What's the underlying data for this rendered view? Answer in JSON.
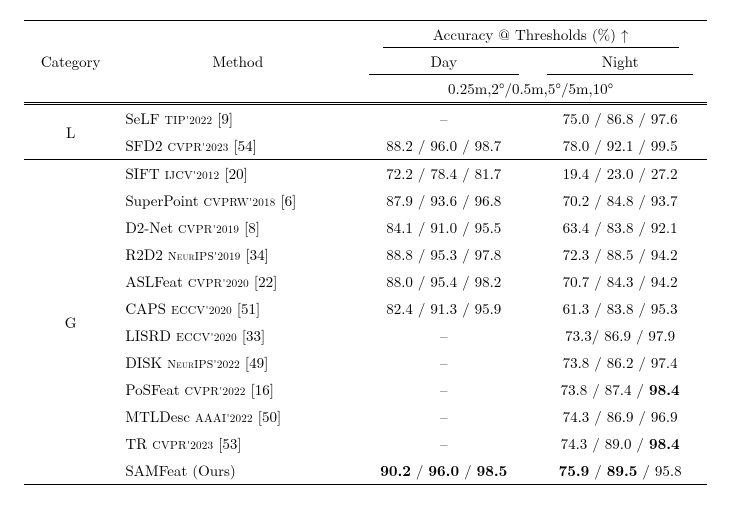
{
  "header": {
    "category": "Category",
    "method": "Method",
    "accuracy": "Accuracy @ Thresholds (%) ↑",
    "day": "Day",
    "night": "Night",
    "thresholds": "0.25m,2°/0.5m,5°/5m,10°"
  },
  "cats": {
    "L": "L",
    "G": "G"
  },
  "rows_L": [
    {
      "name": "SeLF",
      "venue": "TIP",
      "year": "2022",
      "ref": "[9]",
      "day": "–",
      "night": "75.0 / 86.8 / 97.6"
    },
    {
      "name": "SFD2",
      "venue": "CVPR",
      "year": "2023",
      "ref": "[54]",
      "day": "88.2 / 96.0 / 98.7",
      "night": "78.0 / 92.1 / 99.5"
    }
  ],
  "rows_G": [
    {
      "name": "SIFT",
      "venue": "IJCV",
      "year": "2012",
      "ref": "[20]",
      "day": "72.2 / 78.4 / 81.7",
      "night": "19.4 / 23.0 / 27.2"
    },
    {
      "name": "SuperPoint",
      "venue": "CVPRW",
      "year": "2018",
      "ref": "[6]",
      "day": "87.9 / 93.6 / 96.8",
      "night": "70.2 / 84.8 / 93.7"
    },
    {
      "name": "D2-Net",
      "venue": "CVPR",
      "year": "2019",
      "ref": "[8]",
      "day": "84.1 / 91.0 / 95.5",
      "night": "63.4 / 83.8 / 92.1"
    },
    {
      "name": "R2D2",
      "venue": "NeurIPS",
      "year": "2019",
      "ref": "[34]",
      "day": "88.8 / 95.3 / 97.8",
      "night": "72.3 / 88.5 / 94.2"
    },
    {
      "name": "ASLFeat",
      "venue": "CVPR",
      "year": "2020",
      "ref": "[22]",
      "day": "88.0 / 95.4 / 98.2",
      "night": "70.7 / 84.3 / 94.2"
    },
    {
      "name": "CAPS",
      "venue": "ECCV",
      "year": "2020",
      "ref": "[51]",
      "day": "82.4 / 91.3 / 95.9",
      "night": "61.3 / 83.8 / 95.3"
    },
    {
      "name": "LISRD",
      "venue": "ECCV",
      "year": "2020",
      "ref": "[33]",
      "day": "–",
      "night": "73.3/ 86.9 / 97.9"
    },
    {
      "name": "DISK",
      "venue": "NeurIPS",
      "year": "2022",
      "ref": "[49]",
      "day": "–",
      "night": "73.8 / 86.2 / 97.4"
    },
    {
      "name": "PoSFeat",
      "venue": "CVPR",
      "year": "2022",
      "ref": "[16]",
      "day": "–",
      "night_html": "73.8 / 87.4 / <b>98.4</b>"
    },
    {
      "name": "MTLDesc",
      "venue": "AAAI",
      "year": "2022",
      "ref": "[50]",
      "day": "–",
      "night": "74.3 / 86.9 / 96.9"
    },
    {
      "name": "TR",
      "venue": "CVPR",
      "year": "2023",
      "ref": "[53]",
      "day": "–",
      "night_html": "74.3 / 89.0 / <b>98.4</b>"
    },
    {
      "name_html": "SAMFeat (Ours)",
      "venue": "",
      "year": "",
      "ref": "",
      "day_html": "<b>90.2</b> / <b>96.0</b> / <b>98.5</b>",
      "night_html": "<b>75.9</b> / <b>89.5</b> / 95.8"
    }
  ]
}
